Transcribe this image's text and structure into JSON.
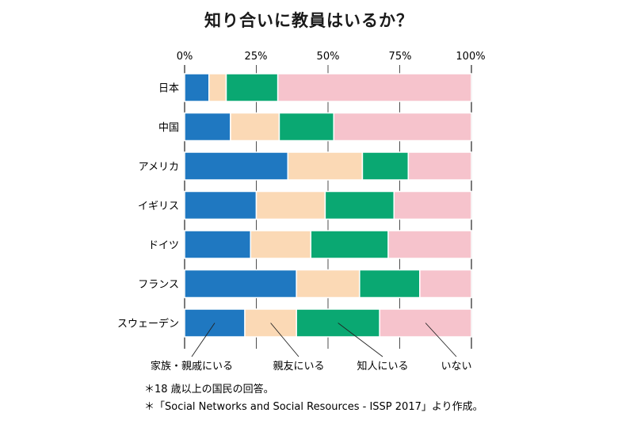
{
  "chart_data": {
    "type": "bar",
    "stacked": true,
    "orientation": "horizontal",
    "title": "知り合いに教員はいるか？",
    "x_tick_labels": [
      "0%",
      "25%",
      "50%",
      "75%",
      "100%"
    ],
    "xlim": [
      0,
      100
    ],
    "grid": true,
    "categories": [
      "日本",
      "中国",
      "アメリカ",
      "イギリス",
      "ドイツ",
      "フランス",
      "スウェーデン"
    ],
    "series": [
      {
        "name": "家族・親戚にいる",
        "color": "#1f78c1",
        "values": [
          8.5,
          16,
          36,
          25,
          23,
          39,
          21
        ]
      },
      {
        "name": "親友にいる",
        "color": "#fbd9b5",
        "values": [
          6,
          17,
          26,
          24,
          21,
          22,
          18
        ]
      },
      {
        "name": "知人にいる",
        "color": "#0aa872",
        "values": [
          18,
          19,
          16,
          24,
          27,
          21,
          29
        ]
      },
      {
        "name": "いない",
        "color": "#f6c3cc",
        "values": [
          67.5,
          48,
          22,
          27,
          29,
          18,
          32
        ]
      }
    ],
    "notes": [
      "＊18 歳以上の国民の回答。",
      "＊「Social Networks and Social Resources - ISSP 2017」より作成。"
    ]
  }
}
